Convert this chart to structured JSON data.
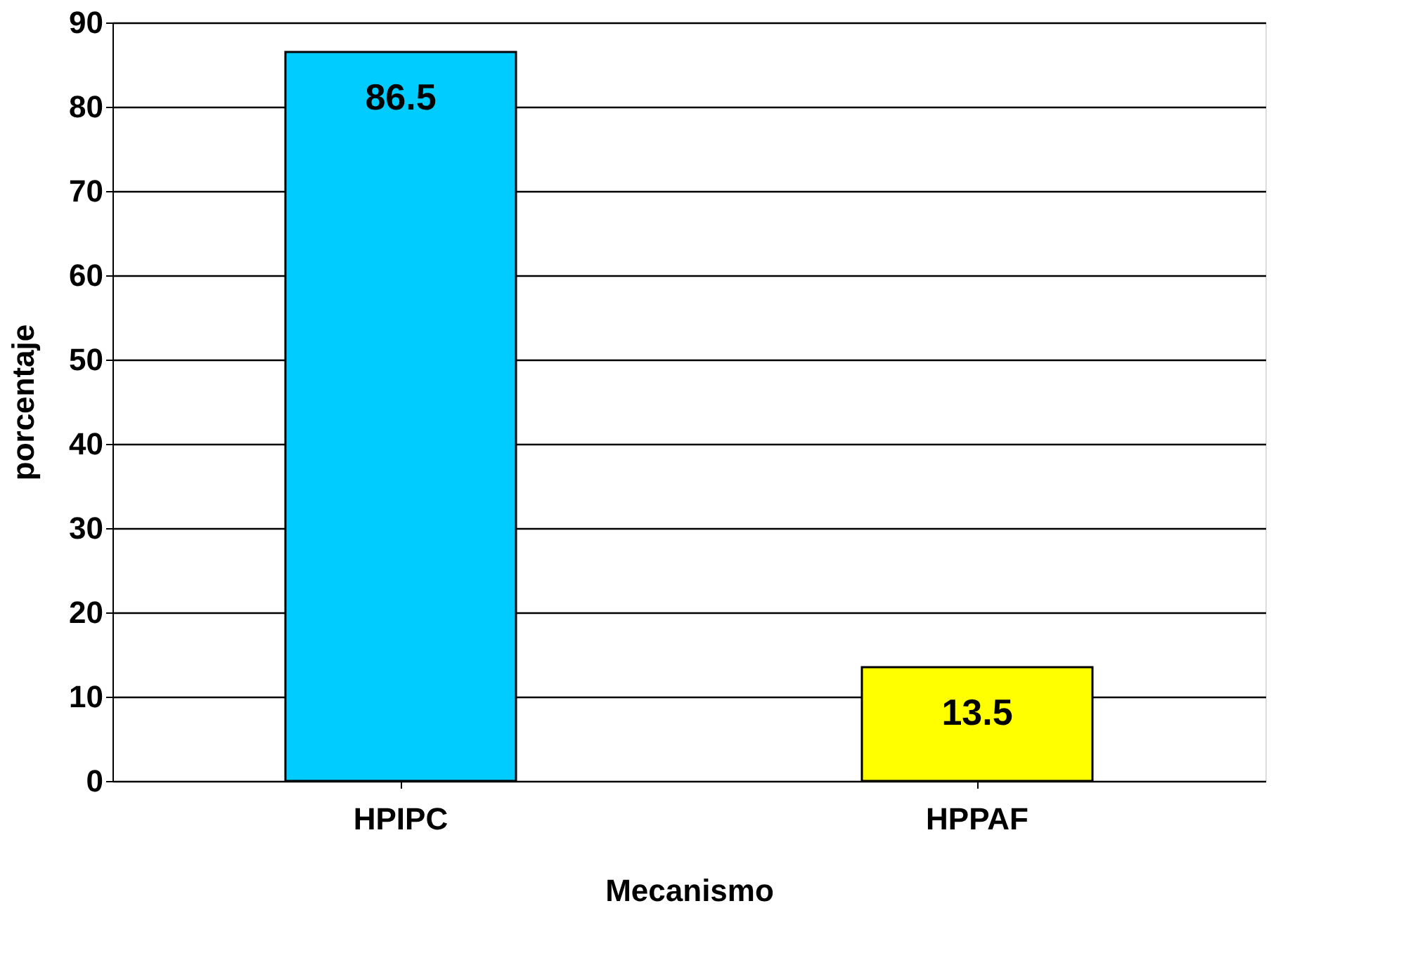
{
  "chart_data": {
    "type": "bar",
    "xlabel": "Mecanismo",
    "ylabel": "porcentaje",
    "categories": [
      "HPIPC",
      "HPPAF"
    ],
    "values": [
      86.5,
      13.5
    ],
    "colors": [
      "#00ccff",
      "#ffff00"
    ],
    "ylim": [
      0,
      90
    ],
    "yticks": [
      0,
      10,
      20,
      30,
      40,
      50,
      60,
      70,
      80,
      90
    ],
    "grid": "y",
    "data_labels": true
  }
}
